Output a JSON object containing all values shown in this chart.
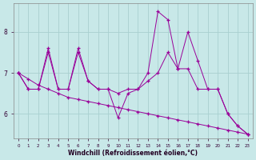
{
  "xlabel": "Windchill (Refroidissement éolien,°C)",
  "background_color": "#c8e8e8",
  "grid_color": "#a8d0d0",
  "line_color": "#990099",
  "xmin": 0,
  "xmax": 23,
  "ymin": 5.4,
  "ymax": 8.7,
  "yticks": [
    6,
    7,
    8
  ],
  "xticks": [
    0,
    1,
    2,
    3,
    4,
    5,
    6,
    7,
    8,
    9,
    10,
    11,
    12,
    13,
    14,
    15,
    16,
    17,
    18,
    19,
    20,
    21,
    22,
    23
  ],
  "series": [
    {
      "x": [
        0,
        1,
        2,
        3,
        4,
        5,
        6,
        7,
        8,
        9,
        10,
        11,
        12,
        13,
        14,
        15,
        16,
        17,
        18,
        19,
        20,
        21,
        22,
        23
      ],
      "y": [
        7.0,
        6.85,
        6.7,
        6.6,
        6.5,
        6.4,
        6.35,
        6.3,
        6.25,
        6.2,
        6.15,
        6.1,
        6.05,
        6.0,
        5.95,
        5.9,
        5.85,
        5.8,
        5.75,
        5.7,
        5.65,
        5.6,
        5.55,
        5.5
      ]
    },
    {
      "x": [
        0,
        1,
        2,
        3,
        4,
        5,
        6,
        7,
        8,
        9,
        10,
        11,
        12,
        13,
        14,
        15,
        16,
        17,
        18,
        19,
        20,
        21,
        22,
        23
      ],
      "y": [
        7.0,
        6.6,
        6.6,
        7.5,
        6.6,
        6.6,
        7.5,
        6.8,
        6.6,
        6.6,
        6.5,
        6.6,
        6.6,
        6.8,
        7.0,
        7.5,
        7.1,
        7.1,
        6.6,
        6.6,
        6.6,
        6.0,
        5.7,
        5.5
      ]
    },
    {
      "x": [
        0,
        1,
        2,
        3,
        4,
        5,
        6,
        7,
        8,
        9,
        10,
        11,
        12,
        13,
        14,
        15,
        16,
        17,
        18,
        19,
        20,
        21,
        22,
        23
      ],
      "y": [
        7.0,
        6.6,
        6.6,
        7.6,
        6.6,
        6.6,
        7.6,
        6.8,
        6.6,
        6.6,
        5.9,
        6.5,
        6.6,
        7.0,
        8.5,
        8.3,
        7.1,
        8.0,
        7.3,
        6.6,
        6.6,
        6.0,
        5.7,
        5.5
      ]
    }
  ]
}
